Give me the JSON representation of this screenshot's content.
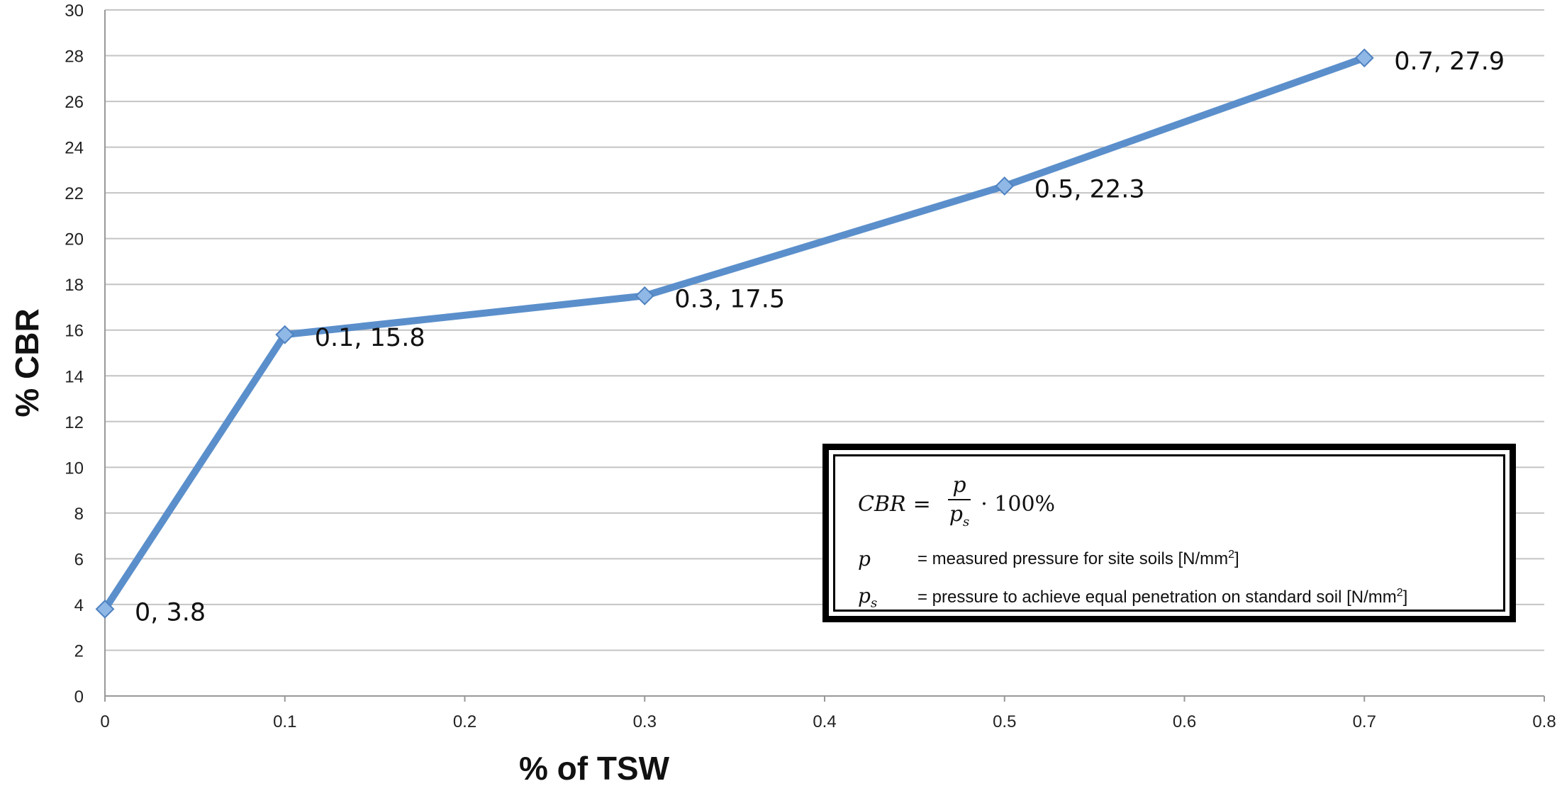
{
  "chart_data": {
    "type": "line",
    "title": "",
    "xlabel": "% of TSW",
    "ylabel": "% CBR",
    "xlim": [
      0,
      0.8
    ],
    "ylim": [
      0,
      30
    ],
    "x_ticks": [
      "0",
      "0.1",
      "0.2",
      "0.3",
      "0.4",
      "0.5",
      "0.6",
      "0.7",
      "0.8"
    ],
    "y_ticks": [
      "0",
      "2",
      "4",
      "6",
      "8",
      "10",
      "12",
      "14",
      "16",
      "18",
      "20",
      "22",
      "24",
      "26",
      "28",
      "30"
    ],
    "grid": true,
    "series": [
      {
        "x": [
          0,
          0.1,
          0.3,
          0.5,
          0.7
        ],
        "y": [
          3.8,
          15.8,
          17.5,
          22.3,
          27.9
        ],
        "labels": [
          "0, 3.8",
          "0.1, 15.8",
          "0.3, 17.5",
          "0.5, 22.3",
          "0.7, 27.9"
        ],
        "color": "#5b8fcb",
        "marker_color": "#8fb8e6"
      }
    ]
  },
  "formula_box": {
    "lhs": "CBR",
    "equals": "=",
    "numerator": "p",
    "denominator": "p",
    "denominator_sub": "s",
    "factor": "· 100%",
    "rows": [
      {
        "symbol": "p",
        "symbol_sub": "",
        "description": "= measured pressure for site soils [N/mm",
        "unit_sup": "2",
        "close": "]"
      },
      {
        "symbol": "p",
        "symbol_sub": "s",
        "description": "= pressure to achieve equal penetration on standard soil [N/mm",
        "unit_sup": "2",
        "close": "]"
      }
    ]
  }
}
